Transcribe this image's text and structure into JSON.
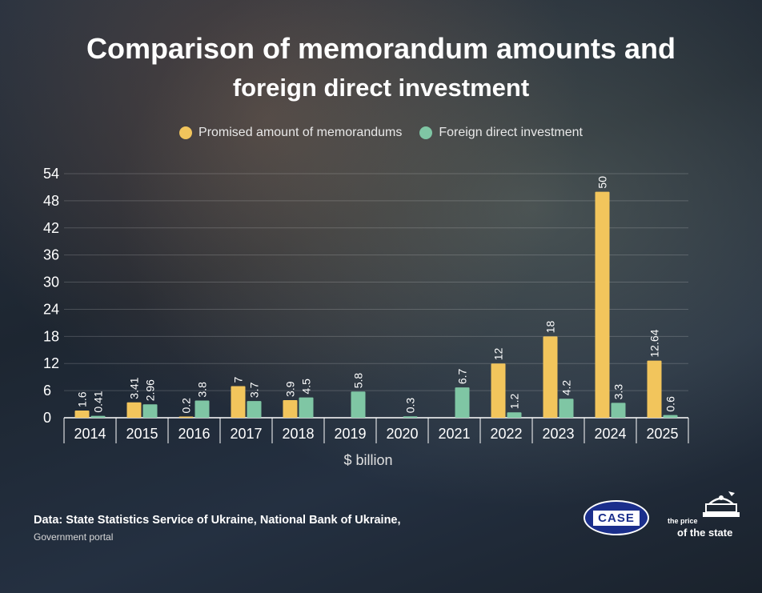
{
  "title_line1": "Comparison of memorandum amounts and",
  "title_line2": "foreign direct investment",
  "legend": {
    "series1": "Promised amount of memorandums",
    "series2": "Foreign direct investment"
  },
  "colors": {
    "series1": "#f2c55c",
    "series2": "#7fc6a4"
  },
  "chart_data": {
    "type": "bar",
    "categories": [
      "2014",
      "2015",
      "2016",
      "2017",
      "2018",
      "2019",
      "2020",
      "2021",
      "2022",
      "2023",
      "2024",
      "2025"
    ],
    "series": [
      {
        "name": "Promised amount of memorandums",
        "values": [
          1.6,
          3.41,
          0.2,
          7,
          3.9,
          null,
          null,
          null,
          12,
          18,
          50,
          12.64
        ]
      },
      {
        "name": "Foreign direct investment",
        "values": [
          0.41,
          2.96,
          3.8,
          3.7,
          4.5,
          5.8,
          0.3,
          6.7,
          1.2,
          4.2,
          3.3,
          0.6
        ]
      }
    ],
    "data_labels": [
      [
        "1.6",
        "3.41",
        "0.2",
        "7",
        "3.9",
        "",
        "",
        "",
        "12",
        "18",
        "50",
        "12.64"
      ],
      [
        "0.41",
        "2.96",
        "3.8",
        "3.7",
        "4.5",
        "5.8",
        "0.3",
        "6.7",
        "1.2",
        "4.2",
        "3.3",
        "0.6"
      ]
    ],
    "yticks": [
      0,
      6,
      12,
      18,
      24,
      30,
      36,
      42,
      48,
      54
    ],
    "ylim": [
      0,
      54
    ],
    "xlabel": "$ billion",
    "grid": true
  },
  "source_line1": "Data: State Statistics Service of Ukraine, National Bank of Ukraine,",
  "source_line2": "Government portal",
  "logos": {
    "case": "CASE",
    "price_top": "the price",
    "price_bottom": "of the state"
  }
}
